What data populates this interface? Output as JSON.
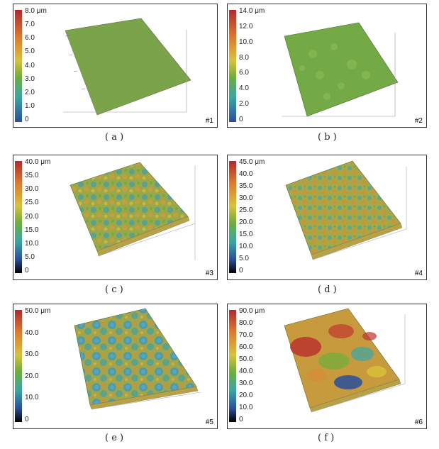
{
  "panels": [
    {
      "id": "a",
      "label": "#1",
      "caption": "( a )",
      "scale": [
        "8.0 μm",
        "7.0",
        "6.0",
        "5.0",
        "4.0",
        "3.0",
        "2.0",
        "1.0",
        "0"
      ]
    },
    {
      "id": "b",
      "label": "#2",
      "caption": "( b )",
      "scale": [
        "14.0 μm",
        "12.0",
        "10.0",
        "8.0",
        "6.0",
        "4.0",
        "2.0",
        "0"
      ]
    },
    {
      "id": "c",
      "label": "#3",
      "caption": "( c )",
      "scale": [
        "40.0 μm",
        "35.0",
        "30.0",
        "25.0",
        "20.0",
        "15.0",
        "10.0",
        "5.0",
        "0"
      ]
    },
    {
      "id": "d",
      "label": "#4",
      "caption": "( d )",
      "scale": [
        "45.0 μm",
        "40.0",
        "35.0",
        "30.0",
        "25.0",
        "20.0",
        "15.0",
        "10.0",
        "5.0",
        "0"
      ]
    },
    {
      "id": "e",
      "label": "#5",
      "caption": "( e )",
      "scale": [
        "50.0 μm",
        "40.0",
        "30.0",
        "20.0",
        "10.0",
        "0"
      ]
    },
    {
      "id": "f",
      "label": "#6",
      "caption": "( f )",
      "scale": [
        "90.0 μm",
        "80.0",
        "70.0",
        "60.0",
        "50.0",
        "40.0",
        "30.0",
        "20.0",
        "10.0",
        "0"
      ]
    }
  ]
}
